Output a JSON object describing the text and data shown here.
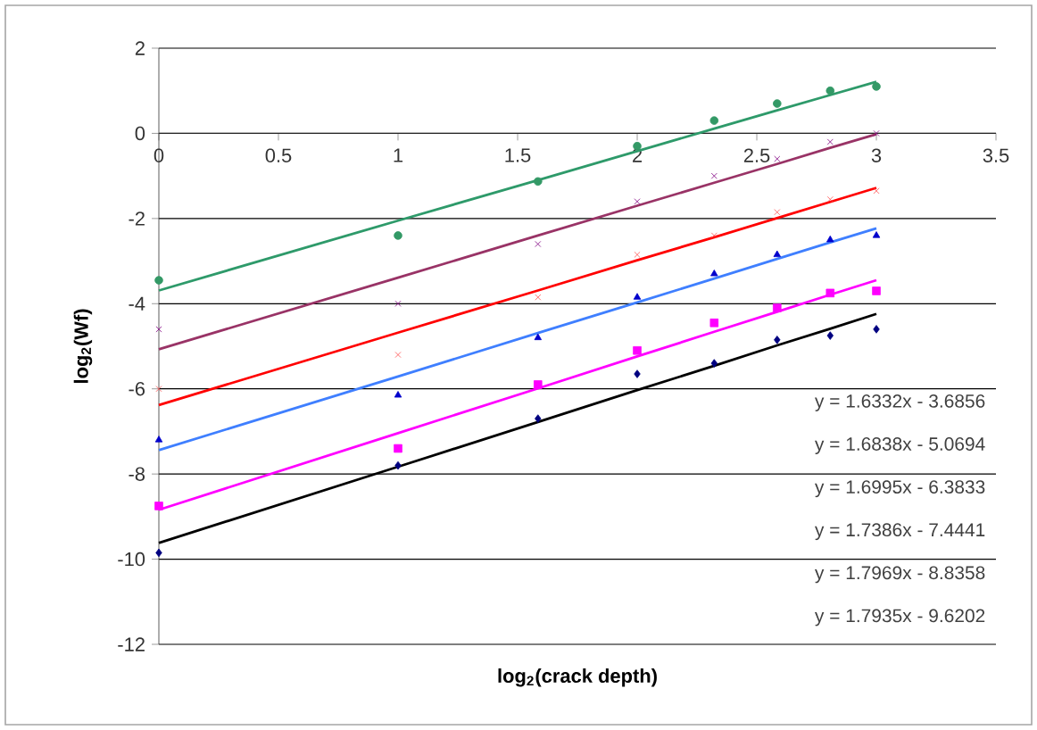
{
  "chart_data": {
    "type": "scatter",
    "xlabel": "**log$_{2}$(crack depth)**",
    "ylabel": "**log$_{2}$(Wf)**",
    "xlim": [
      0,
      3.5
    ],
    "xticks": [
      0,
      0.5,
      1,
      1.5,
      2,
      2.5,
      3,
      3.5
    ],
    "ylim": [
      -12,
      2
    ],
    "yticks": [
      -12,
      -10,
      -8,
      -6,
      -4,
      -2,
      0,
      2
    ],
    "grid": "y",
    "x": [
      0,
      1,
      1.585,
      2,
      2.322,
      2.585,
      2.807,
      3
    ],
    "series": [
      {
        "type": "scatter",
        "marker": "circle",
        "color": "#339966",
        "values": [
          -3.45,
          -2.4,
          -1.13,
          -0.3,
          0.3,
          0.7,
          1.0,
          1.1
        ]
      },
      {
        "type": "scatter",
        "marker": "cross",
        "color": "#800080",
        "values": [
          -4.6,
          -4.0,
          -2.6,
          -1.6,
          -1.0,
          -0.6,
          -0.2,
          0.0
        ]
      },
      {
        "type": "scatter",
        "marker": "cross",
        "color": "#ff5050",
        "values": [
          -6.0,
          -5.2,
          -3.85,
          -2.85,
          -2.4,
          -1.85,
          -1.55,
          -1.35
        ]
      },
      {
        "type": "scatter",
        "marker": "triangle",
        "color": "#0000cc",
        "values": [
          -7.2,
          -6.15,
          -4.8,
          -3.85,
          -3.3,
          -2.85,
          -2.5,
          -2.4
        ]
      },
      {
        "type": "scatter",
        "marker": "square",
        "color": "#ff00ff",
        "values": [
          -8.75,
          -7.4,
          -5.9,
          -5.1,
          -4.45,
          -4.1,
          -3.75,
          -3.7
        ]
      },
      {
        "type": "scatter",
        "marker": "diamond",
        "color": "#000080",
        "values": [
          -9.85,
          -7.8,
          -6.7,
          -5.65,
          -5.4,
          -4.85,
          -4.75,
          -4.6
        ]
      },
      {
        "type": "line",
        "marker": "none",
        "color": "#2e9a6a",
        "values": [
          -3.69,
          -2.05,
          -1.1,
          -0.42,
          0.11,
          0.54,
          0.9,
          1.21
        ]
      },
      {
        "type": "line",
        "marker": "none",
        "color": "#993366",
        "values": [
          -5.07,
          -3.39,
          -2.4,
          -1.7,
          -1.16,
          -0.72,
          -0.34,
          -0.02
        ]
      },
      {
        "type": "line",
        "marker": "none",
        "color": "#ff0000",
        "values": [
          -6.38,
          -4.68,
          -3.69,
          -2.98,
          -2.44,
          -1.99,
          -1.61,
          -1.28
        ]
      },
      {
        "type": "line",
        "marker": "none",
        "color": "#3f7fff",
        "values": [
          -7.44,
          -5.71,
          -4.69,
          -3.97,
          -3.41,
          -2.95,
          -2.56,
          -2.23
        ]
      },
      {
        "type": "line",
        "marker": "none",
        "color": "#ff00ff",
        "values": [
          -8.84,
          -7.04,
          -5.99,
          -5.24,
          -4.66,
          -4.19,
          -3.79,
          -3.45
        ]
      },
      {
        "type": "line",
        "marker": "none",
        "color": "#000000",
        "values": [
          -9.62,
          -7.83,
          -6.78,
          -6.03,
          -5.46,
          -4.98,
          -4.59,
          -4.24
        ]
      }
    ],
    "annotations": [
      "y = 1.6332x - 3.6856",
      "y = 1.6838x - 5.0694",
      "y = 1.6995x - 6.3833",
      "y = 1.7386x - 7.4441",
      "y = 1.7969x - 8.8358",
      "y = 1.7935x - 9.6202"
    ]
  }
}
